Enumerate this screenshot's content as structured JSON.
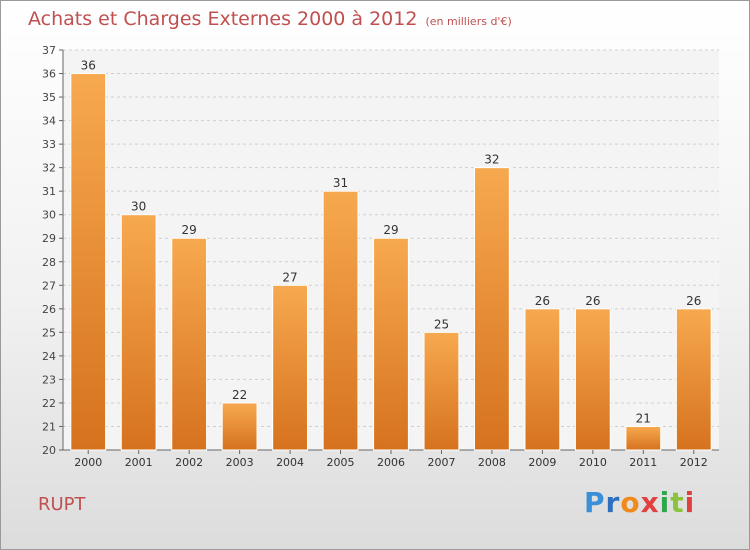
{
  "header": {
    "title": "Achats et Charges Externes 2000 à 2012",
    "subtitle": "(en milliers d'€)"
  },
  "footer": {
    "place": "RUPT",
    "logo_letters": [
      "P",
      "r",
      "o",
      "x",
      "i",
      "t",
      "i"
    ]
  },
  "colors": {
    "bar_light": "#f7a94f",
    "bar_dark": "#d6721e",
    "title": "#c05050",
    "grid": "#cfcfcf"
  },
  "chart_data": {
    "type": "bar",
    "categories": [
      "2000",
      "2001",
      "2002",
      "2003",
      "2004",
      "2005",
      "2006",
      "2007",
      "2008",
      "2009",
      "2010",
      "2011",
      "2012"
    ],
    "values": [
      36,
      30,
      29,
      22,
      27,
      31,
      29,
      25,
      32,
      26,
      26,
      21,
      26
    ],
    "value_labels": [
      "36",
      "30",
      "29",
      "22",
      "27",
      "31",
      "29",
      "25",
      "32",
      "26",
      "26",
      "21",
      "26"
    ],
    "ylim": [
      20,
      37
    ],
    "yticks": [
      "20",
      "21",
      "22",
      "23",
      "24",
      "25",
      "26",
      "27",
      "28",
      "29",
      "30",
      "31",
      "32",
      "33",
      "34",
      "35",
      "36",
      "37"
    ],
    "grid": true,
    "title": "Achats et Charges Externes 2000 à 2012",
    "xlabel": "",
    "ylabel": ""
  }
}
